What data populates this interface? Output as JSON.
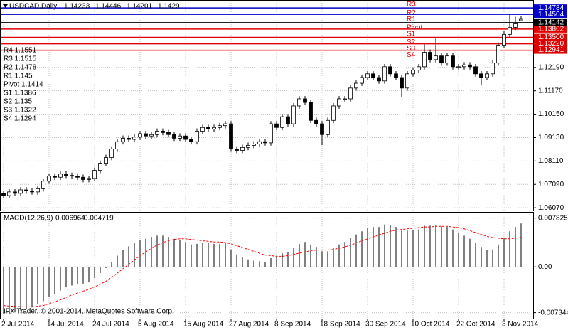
{
  "chart_data": [
    {
      "type": "candlestick",
      "title": "USDCAD,Daily",
      "categories": [
        "2 Jul 2014",
        null,
        null,
        null,
        null,
        null,
        null,
        null,
        "14 Jul 2014",
        null,
        null,
        null,
        null,
        null,
        null,
        null,
        "24 Jul 2014",
        null,
        null,
        null,
        null,
        null,
        null,
        null,
        "5 Aug 2014",
        null,
        null,
        null,
        null,
        null,
        null,
        null,
        "15 Aug 2014",
        null,
        null,
        null,
        null,
        null,
        null,
        null,
        "27 Aug 2014",
        null,
        null,
        null,
        null,
        null,
        null,
        null,
        "8 Sep 2014",
        null,
        null,
        null,
        null,
        null,
        null,
        null,
        "18 Sep 2014",
        null,
        null,
        null,
        null,
        null,
        null,
        null,
        "30 Sep 2014",
        null,
        null,
        null,
        null,
        null,
        null,
        null,
        "10 Oct 2014",
        null,
        null,
        null,
        null,
        null,
        null,
        null,
        "22 Oct 2014",
        null,
        null,
        null,
        null,
        null,
        null,
        null,
        "3 Nov 2014",
        null,
        null,
        null
      ],
      "open": [
        1.067,
        1.066,
        1.0676,
        1.067,
        1.0685,
        1.068,
        1.0676,
        1.069,
        1.0723,
        1.0745,
        1.074,
        1.0754,
        1.0748,
        1.0745,
        1.074,
        1.073,
        1.0735,
        1.077,
        1.0801,
        1.0826,
        1.0863,
        1.0895,
        1.091,
        1.0905,
        1.0915,
        1.093,
        1.092,
        1.0926,
        1.0941,
        1.0935,
        1.0926,
        1.091,
        1.092,
        1.0905,
        1.0895,
        1.0941,
        1.0957,
        1.095,
        1.0957,
        1.0965,
        1.0973,
        1.0863,
        1.0857,
        1.087,
        1.0879,
        1.0885,
        1.0895,
        1.089,
        1.0973,
        1.0957,
        1.1004,
        1.0973,
        1.1051,
        1.1082,
        1.1066,
        1.0988,
        1.0973,
        1.0926,
        1.0988,
        1.1051,
        1.1082,
        1.1082,
        1.1129,
        1.115,
        1.1175,
        1.1191,
        1.1175,
        1.116,
        1.1222,
        1.1191,
        1.1175,
        1.1129,
        1.1191,
        1.1207,
        1.1222,
        1.1285,
        1.1253,
        1.1269,
        1.1238,
        1.1269,
        1.1222,
        1.1222,
        1.123,
        1.1222,
        1.1191,
        1.1175,
        1.1191,
        1.1238,
        1.1316,
        1.1363,
        1.1394,
        1.14233
      ],
      "high": [
        1.0682,
        1.0688,
        1.0688,
        1.0697,
        1.0697,
        1.0692,
        1.0702,
        1.0735,
        1.0757,
        1.0757,
        1.0766,
        1.0766,
        1.076,
        1.0757,
        1.0752,
        1.0747,
        1.0782,
        1.0813,
        1.0838,
        1.0875,
        1.0907,
        1.0922,
        1.0922,
        1.0927,
        1.0942,
        1.0942,
        1.0938,
        1.0953,
        1.0953,
        1.0947,
        1.0938,
        1.0932,
        1.0932,
        1.0917,
        1.0953,
        1.0969,
        1.0969,
        1.0969,
        1.0977,
        1.0985,
        1.0985,
        1.0875,
        1.0882,
        1.0891,
        1.0897,
        1.0907,
        1.0907,
        1.0985,
        1.0985,
        1.1016,
        1.1016,
        1.1063,
        1.1094,
        1.1094,
        1.1078,
        1.1,
        1.0985,
        1.1,
        1.1063,
        1.1094,
        1.1094,
        1.1141,
        1.1162,
        1.1187,
        1.1203,
        1.1203,
        1.1187,
        1.1234,
        1.1234,
        1.1203,
        1.1187,
        1.1203,
        1.1219,
        1.1234,
        1.132,
        1.1297,
        1.135,
        1.1281,
        1.1281,
        1.1281,
        1.1234,
        1.1242,
        1.1242,
        1.1234,
        1.1203,
        1.1203,
        1.125,
        1.1328,
        1.138,
        1.145,
        1.144,
        1.14446
      ],
      "low": [
        1.0648,
        1.0648,
        1.0658,
        1.0658,
        1.0668,
        1.0664,
        1.0664,
        1.0678,
        1.0711,
        1.0728,
        1.0728,
        1.0736,
        1.0733,
        1.0728,
        1.0718,
        1.0718,
        1.0723,
        1.0758,
        1.0789,
        1.0814,
        1.0851,
        1.0883,
        1.0893,
        1.0893,
        1.0903,
        1.0908,
        1.0908,
        1.0914,
        1.0923,
        1.0914,
        1.0898,
        1.0898,
        1.0893,
        1.0883,
        1.0883,
        1.0929,
        1.0938,
        1.0938,
        1.0945,
        1.0953,
        1.0851,
        1.0845,
        1.0845,
        1.0858,
        1.0867,
        1.0873,
        1.0878,
        1.0878,
        1.0945,
        1.0945,
        1.0961,
        1.0961,
        1.1039,
        1.1054,
        1.0976,
        1.0961,
        1.088,
        1.0914,
        1.0976,
        1.1039,
        1.107,
        1.107,
        1.1117,
        1.1138,
        1.1163,
        1.1163,
        1.1148,
        1.1148,
        1.1179,
        1.1163,
        1.109,
        1.1117,
        1.1179,
        1.1195,
        1.121,
        1.1241,
        1.1241,
        1.1226,
        1.1226,
        1.121,
        1.121,
        1.121,
        1.121,
        1.1179,
        1.114,
        1.1163,
        1.1179,
        1.1226,
        1.1304,
        1.1351,
        1.1382,
        1.14201
      ],
      "close": [
        1.066,
        1.0676,
        1.067,
        1.0685,
        1.068,
        1.0676,
        1.069,
        1.0723,
        1.0745,
        1.074,
        1.0754,
        1.0748,
        1.0745,
        1.074,
        1.073,
        1.0735,
        1.077,
        1.0801,
        1.0826,
        1.0863,
        1.0895,
        1.091,
        1.0905,
        1.0915,
        1.093,
        1.092,
        1.0926,
        1.0941,
        1.0935,
        1.0926,
        1.091,
        1.092,
        1.0905,
        1.0895,
        1.0941,
        1.0957,
        1.095,
        1.0957,
        1.0965,
        1.0973,
        1.0863,
        1.0857,
        1.087,
        1.0879,
        1.0885,
        1.0895,
        1.089,
        1.0973,
        1.0957,
        1.1004,
        1.0973,
        1.1051,
        1.1082,
        1.1066,
        1.0988,
        1.0973,
        1.0926,
        1.0988,
        1.1051,
        1.1082,
        1.1082,
        1.1129,
        1.115,
        1.1175,
        1.1191,
        1.1175,
        1.116,
        1.1222,
        1.1191,
        1.1175,
        1.1129,
        1.1191,
        1.1207,
        1.1222,
        1.1285,
        1.1253,
        1.1269,
        1.1238,
        1.1269,
        1.1222,
        1.1222,
        1.123,
        1.1222,
        1.1191,
        1.1175,
        1.1191,
        1.1238,
        1.1316,
        1.1363,
        1.1394,
        1.1409,
        1.1429
      ],
      "ylim": [
        1.0595,
        1.1513
      ],
      "yticks": [
        {
          "value": 1.0607,
          "label": "1.06070"
        },
        {
          "value": 1.0709,
          "label": "1.07090"
        },
        {
          "value": 1.0811,
          "label": "1.08110"
        },
        {
          "value": 1.0913,
          "label": "1.09130"
        },
        {
          "value": 1.1015,
          "label": "1.10150"
        },
        {
          "value": 1.1117,
          "label": "1.11170"
        },
        {
          "value": 1.1219,
          "label": "1.12190"
        }
      ],
      "grid": true,
      "levels": [
        {
          "name": "R3",
          "value": 1.1515,
          "color": "#0000c8"
        },
        {
          "name": "R2",
          "value": 1.14784,
          "color": "#0000c8"
        },
        {
          "name": "R1",
          "value": 1.14504,
          "color": "#0000c8"
        },
        {
          "name": "Pivot",
          "value": 1.14142,
          "color": "#000000"
        },
        {
          "name": "S1",
          "value": 1.13862,
          "color": "#e00000"
        },
        {
          "name": "S2",
          "value": 1.135,
          "label": "1.13500",
          "color": "#e00000"
        },
        {
          "name": "S3",
          "value": 1.1322,
          "label": "1.13220",
          "color": "#e00000"
        },
        {
          "name": "S4",
          "value": 1.12941,
          "color": "#e00000"
        }
      ],
      "info_lines": [
        "R4 1.1551",
        "R3 1.1515",
        "R2 1.1478",
        "R1 1.145",
        "Pivot 1.1414",
        "S1 1.1386",
        "S2 1.135",
        "S3 1.1322",
        "S4 1.1294"
      ]
    },
    {
      "type": "macd",
      "title": "MACD(12,26,9)",
      "series": [
        {
          "color": "#000000",
          "values": [
            -0.0075,
            -0.0075,
            -0.0073,
            -0.007,
            -0.0068,
            -0.0065,
            -0.006,
            -0.0055,
            -0.0048,
            -0.0043,
            -0.0038,
            -0.0033,
            -0.003,
            -0.0028,
            -0.0027,
            -0.0025,
            -0.0018,
            -0.001,
            -0.0002,
            0.0008,
            0.0018,
            0.0027,
            0.0033,
            0.0038,
            0.0043,
            0.0045,
            0.0048,
            0.005,
            0.005,
            0.0048,
            0.0045,
            0.0043,
            0.004,
            0.0036,
            0.0037,
            0.0038,
            0.0038,
            0.0037,
            0.0037,
            0.0038,
            0.0028,
            0.002,
            0.0015,
            0.0012,
            0.001,
            0.0009,
            0.0008,
            0.0014,
            0.0017,
            0.0022,
            0.0024,
            0.003,
            0.0037,
            0.004,
            0.0036,
            0.0032,
            0.0025,
            0.0025,
            0.003,
            0.0036,
            0.004,
            0.0046,
            0.0052,
            0.0057,
            0.0062,
            0.0064,
            0.0064,
            0.0068,
            0.0067,
            0.0064,
            0.0058,
            0.0058,
            0.0059,
            0.006,
            0.0066,
            0.0066,
            0.0067,
            0.0065,
            0.0064,
            0.006,
            0.0055,
            0.005,
            0.0045,
            0.0038,
            0.0032,
            0.0027,
            0.0028,
            0.0036,
            0.0047,
            0.0057,
            0.0064,
            0.006964
          ]
        },
        {
          "color": "#ff0000",
          "values": [
            -0.0062,
            -0.0063,
            -0.0063,
            -0.0064,
            -0.0064,
            -0.0064,
            -0.0063,
            -0.0062,
            -0.0059,
            -0.0056,
            -0.0053,
            -0.0049,
            -0.0045,
            -0.0042,
            -0.0039,
            -0.0036,
            -0.0032,
            -0.0028,
            -0.0023,
            -0.0017,
            -0.001,
            -0.0003,
            0.0004,
            0.0011,
            0.0018,
            0.0024,
            0.003,
            0.0035,
            0.0039,
            0.0042,
            0.0044,
            0.0045,
            0.0045,
            0.0044,
            0.0043,
            0.0042,
            0.0041,
            0.004,
            0.004,
            0.0039,
            0.0037,
            0.0034,
            0.0031,
            0.0028,
            0.0025,
            0.0022,
            0.0019,
            0.0018,
            0.0017,
            0.0017,
            0.0018,
            0.002,
            0.0022,
            0.0024,
            0.0026,
            0.0027,
            0.0027,
            0.0027,
            0.0028,
            0.003,
            0.0032,
            0.0035,
            0.0038,
            0.0042,
            0.0045,
            0.0048,
            0.0051,
            0.0054,
            0.0057,
            0.0059,
            0.006,
            0.0061,
            0.0062,
            0.0063,
            0.0064,
            0.0064,
            0.0065,
            0.0065,
            0.0065,
            0.0064,
            0.0063,
            0.0061,
            0.0058,
            0.0055,
            0.0052,
            0.0049,
            0.0047,
            0.0046,
            0.0045,
            0.0045,
            0.0046,
            0.004719
          ]
        }
      ],
      "ylim": [
        -0.0083,
        0.0087
      ],
      "yticks": [
        0.007825,
        {
          "value": 0,
          "label": "0.00"
        },
        -0.007344
      ],
      "copyright": "IFX Trader, © 2001-2014, MetaQuotes Software Corp."
    }
  ]
}
